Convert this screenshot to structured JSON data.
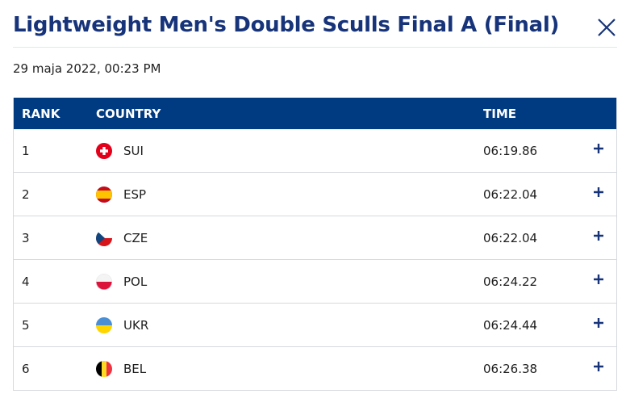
{
  "header": {
    "title": "Lightweight Men's Double Sculls Final A (Final)",
    "date": "29 maja 2022, 00:23 PM"
  },
  "table": {
    "columns": [
      "RANK",
      "COUNTRY",
      "TIME"
    ],
    "rows": [
      [
        1,
        "SUI",
        "06:19.86"
      ],
      [
        2,
        "ESP",
        "06:22.04"
      ],
      [
        3,
        "CZE",
        "06:22.04"
      ],
      [
        4,
        "POL",
        "06:24.22"
      ],
      [
        5,
        "UKR",
        "06:24.44"
      ],
      [
        6,
        "BEL",
        "06:26.38"
      ]
    ]
  }
}
